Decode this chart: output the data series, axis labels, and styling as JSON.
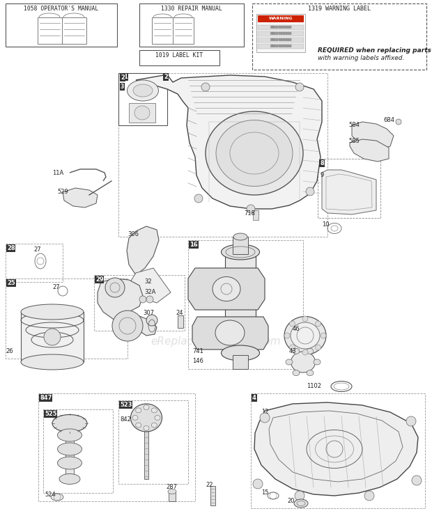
{
  "bg": "#ffffff",
  "lc": "#555555",
  "dc": "#888888",
  "tc": "#222222",
  "figsize": [
    6.2,
    7.44
  ],
  "dpi": 100,
  "watermark": "eReplacementParts.com",
  "note1": "REQUIRED when replacing parts",
  "note2": "with warning labels affixed.",
  "manual1_title": "1058 OPERATOR'S MANUAL",
  "manual2_title": "1330 REPAIR MANUAL",
  "label_kit": "1019 LABEL KIT",
  "warning_title": "1319 WARNING LABEL"
}
